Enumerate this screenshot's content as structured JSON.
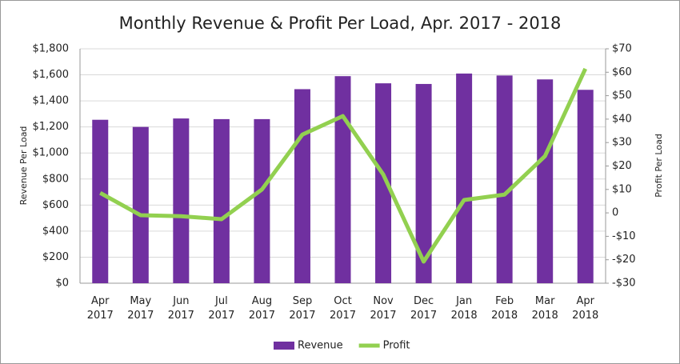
{
  "chart_data": {
    "type": "bar-line",
    "title": "Monthly Revenue & Profit Per Load, Apr. 2017 - 2018",
    "y_label": "Revenue Per Load",
    "y2_label": "Profit Per Load",
    "categories": [
      "Apr 2017",
      "May 2017",
      "Jun 2017",
      "Jul 2017",
      "Aug 2017",
      "Sep 2017",
      "Oct 2017",
      "Nov 2017",
      "Dec 2017",
      "Jan 2018",
      "Feb 2018",
      "Mar 2018",
      "Apr 2018"
    ],
    "series": [
      {
        "name": "Revenue",
        "type": "bar",
        "color": "#7030a0",
        "values": [
          1255,
          1200,
          1265,
          1260,
          1260,
          1490,
          1590,
          1535,
          1530,
          1610,
          1595,
          1565,
          1485
        ]
      },
      {
        "name": "Profit",
        "type": "line",
        "axis": "y2",
        "color": "#92d050",
        "values": [
          8.5,
          -1,
          -1.4,
          -2.7,
          10,
          33.4,
          41.3,
          16.4,
          -20.8,
          5.5,
          7.8,
          24.2,
          61.5
        ]
      }
    ],
    "ylim": [
      0,
      1800
    ],
    "yticks": [
      {
        "value": 0,
        "label": "$0"
      },
      {
        "value": 200,
        "label": "$200"
      },
      {
        "value": 400,
        "label": "$400"
      },
      {
        "value": 600,
        "label": "$600"
      },
      {
        "value": 800,
        "label": "$800"
      },
      {
        "value": 1000,
        "label": "$1,000"
      },
      {
        "value": 1200,
        "label": "$1,200"
      },
      {
        "value": 1400,
        "label": "$1,400"
      },
      {
        "value": 1600,
        "label": "$1,600"
      },
      {
        "value": 1800,
        "label": "$1,800"
      }
    ],
    "y2lim": [
      -30,
      70
    ],
    "y2ticks": [
      {
        "value": -30,
        "label": "-$30"
      },
      {
        "value": -20,
        "label": "-$20"
      },
      {
        "value": -10,
        "label": "-$10"
      },
      0,
      {
        "value": 10,
        "label": "$10"
      },
      {
        "value": 20,
        "label": "$20"
      },
      {
        "value": 30,
        "label": "$30"
      },
      {
        "value": 40,
        "label": "$40"
      },
      {
        "value": 50,
        "label": "$50"
      },
      {
        "value": 60,
        "label": "$60"
      },
      {
        "value": 70,
        "label": "$70"
      }
    ],
    "grid": true,
    "legend": "bottom"
  }
}
